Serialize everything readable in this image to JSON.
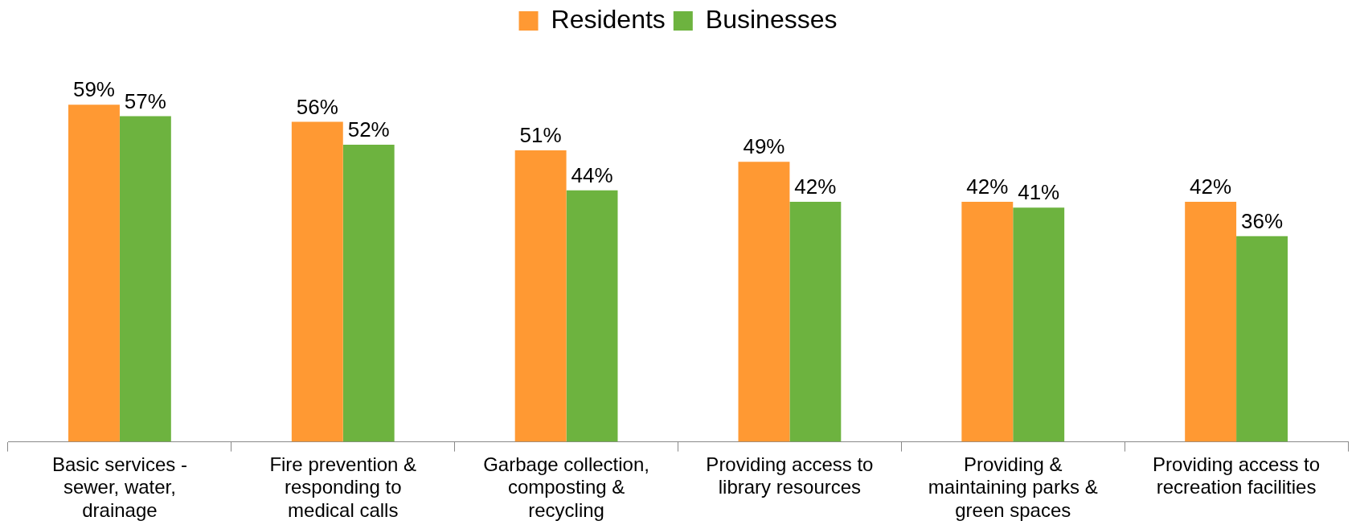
{
  "chart_data": {
    "type": "bar",
    "categories": [
      "Basic services - sewer, water, drainage",
      "Fire prevention & responding to medical calls",
      "Garbage collection, composting & recycling",
      "Providing access to library resources",
      "Providing & maintaining parks & green spaces",
      "Providing access to recreation facilities"
    ],
    "series": [
      {
        "name": "Residents",
        "color": "#ff9933",
        "values": [
          59,
          56,
          51,
          49,
          42,
          42
        ],
        "value_labels": [
          "59%",
          "56%",
          "51%",
          "49%",
          "42%",
          "42%"
        ]
      },
      {
        "name": "Businesses",
        "color": "#6db33f",
        "values": [
          57,
          52,
          44,
          42,
          41,
          36
        ],
        "value_labels": [
          "57%",
          "52%",
          "44%",
          "42%",
          "41%",
          "36%"
        ]
      }
    ],
    "tick_labels": "x",
    "grid": false,
    "legend": "top"
  }
}
